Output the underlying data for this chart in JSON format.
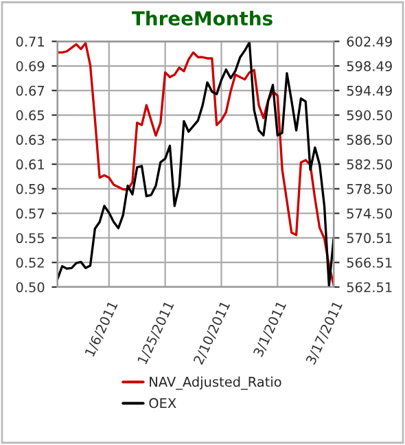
{
  "chart_data": {
    "type": "line",
    "title": "ThreeMonths",
    "categories": [
      null,
      null,
      null,
      null,
      null,
      null,
      null,
      null,
      null,
      null,
      null,
      "1/6/2011",
      null,
      null,
      null,
      null,
      null,
      null,
      null,
      null,
      null,
      null,
      null,
      "1/25/2011",
      null,
      null,
      null,
      null,
      null,
      null,
      null,
      null,
      null,
      null,
      null,
      "2/10/2011",
      null,
      null,
      null,
      null,
      null,
      null,
      null,
      null,
      null,
      null,
      null,
      "3/1/2011",
      null,
      null,
      null,
      null,
      null,
      null,
      null,
      null,
      null,
      null,
      null,
      "3/17/2011"
    ],
    "series": [
      {
        "name": "NAV_Adjusted_Ratio",
        "color": "#cc0000",
        "values": [
          0.704,
          0.704,
          0.705,
          0.708,
          0.711,
          0.707,
          0.712,
          0.693,
          0.647,
          0.597,
          0.599,
          0.597,
          0.591,
          0.589,
          0.587,
          0.587,
          0.593,
          0.644,
          0.642,
          0.659,
          0.646,
          0.633,
          0.644,
          0.687,
          0.683,
          0.685,
          0.691,
          0.688,
          0.698,
          0.704,
          0.7,
          0.7,
          0.699,
          0.699,
          0.642,
          0.646,
          0.653,
          0.671,
          0.685,
          0.683,
          0.681,
          0.687,
          0.689,
          0.659,
          0.648,
          0.663,
          0.671,
          0.667,
          0.604,
          0.577,
          0.55,
          0.548,
          0.61,
          0.612,
          0.608,
          0.579,
          0.554,
          0.545,
          0.522,
          0.505
        ]
      },
      {
        "name": "OEX",
        "color": "#000000",
        "axis": "y2",
        "values": [
          563.8,
          565.9,
          565.5,
          565.6,
          566.4,
          566.6,
          565.6,
          566.0,
          572.0,
          573.1,
          575.7,
          574.6,
          573.1,
          572.1,
          574.2,
          579.0,
          577.6,
          582.0,
          582.2,
          577.3,
          577.5,
          579.0,
          582.8,
          583.4,
          585.5,
          575.7,
          579.0,
          589.5,
          587.8,
          588.7,
          589.6,
          592.1,
          595.8,
          594.3,
          593.9,
          596.2,
          597.9,
          596.5,
          597.7,
          599.9,
          601.0,
          602.3,
          591.3,
          588.0,
          587.2,
          592.8,
          595.4,
          587.2,
          587.6,
          597.3,
          592.8,
          588.0,
          593.2,
          592.7,
          581.6,
          585.2,
          582.4,
          575.7,
          562.7,
          570.5
        ]
      }
    ],
    "ylim": [
      0.5035,
      0.7135
    ],
    "yticks": [
      {
        "value": 0.5035,
        "label": "0.50"
      },
      {
        "value": 0.5245,
        "label": "0.52"
      },
      {
        "value": 0.5455,
        "label": "0.55"
      },
      {
        "value": 0.5665,
        "label": "0.57"
      },
      {
        "value": 0.5875,
        "label": "0.59"
      },
      {
        "value": 0.6085,
        "label": "0.61"
      },
      {
        "value": 0.6295,
        "label": "0.63"
      },
      {
        "value": 0.6505,
        "label": "0.65"
      },
      {
        "value": 0.6715,
        "label": "0.67"
      },
      {
        "value": 0.6925,
        "label": "0.69"
      },
      {
        "value": 0.7135,
        "label": "0.71"
      }
    ],
    "y2lim": [
      562.51,
      602.49
    ],
    "y2ticks": [
      562.51,
      566.51,
      {
        "value": 570.508,
        "label": "570.51"
      },
      {
        "value": 574.504,
        "label": "574.50"
      },
      {
        "value": 578.502,
        "label": "578.50"
      },
      {
        "value": 582.5,
        "label": "582.50"
      },
      {
        "value": 586.498,
        "label": "586.50"
      },
      {
        "value": 590.496,
        "label": "590.50"
      },
      {
        "value": 594.494,
        "label": "594.49"
      },
      {
        "value": 598.492,
        "label": "598.49"
      },
      602.49
    ],
    "grid": true,
    "legend": "bottom",
    "line_style": "solid",
    "marker": "none"
  }
}
